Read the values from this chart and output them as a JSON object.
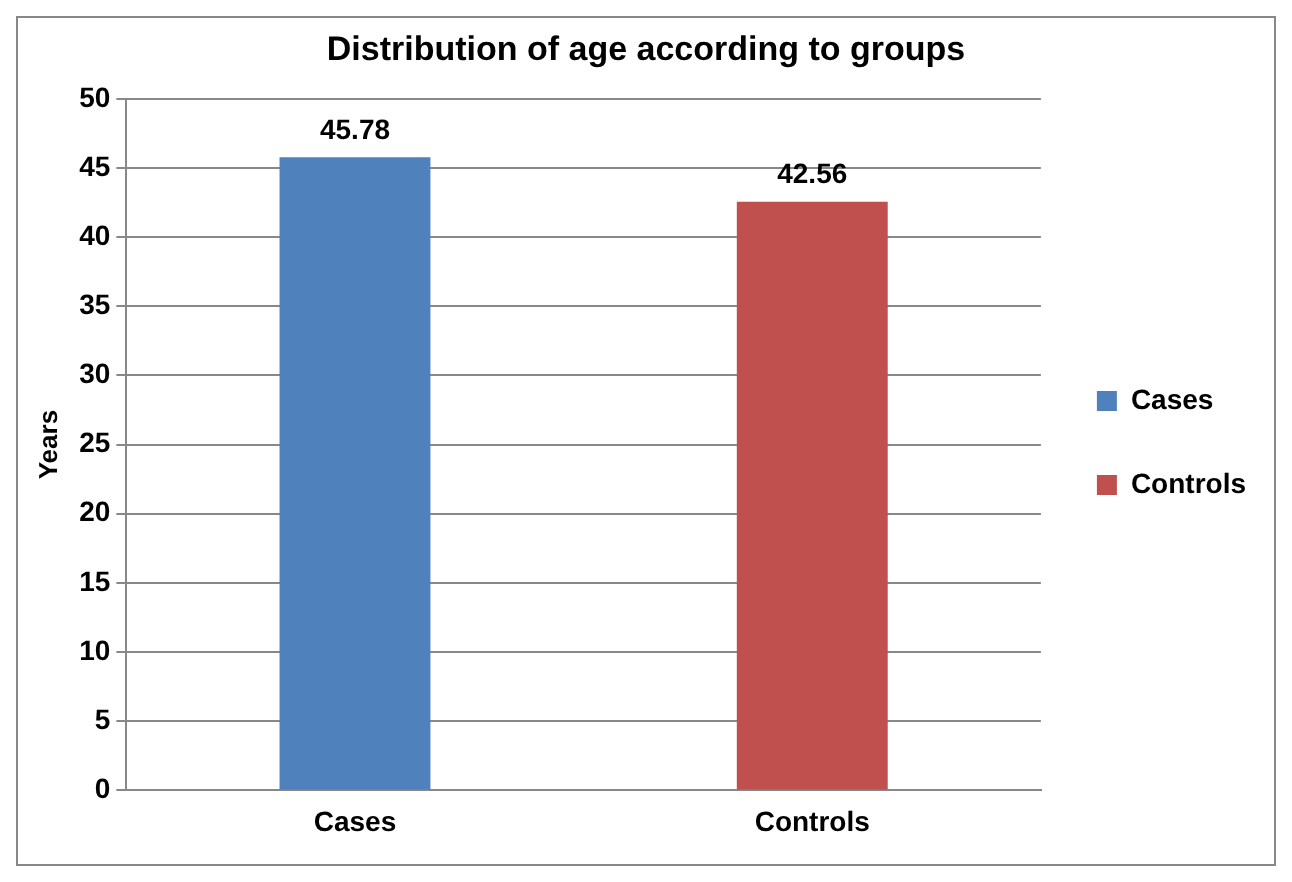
{
  "chart_data": {
    "type": "bar",
    "title": "Distribution of age according to groups",
    "ylabel": "Years",
    "categories": [
      "Cases",
      "Controls"
    ],
    "series": [
      {
        "name": "Cases",
        "color": "#4f81bd",
        "values": [
          45.78,
          null
        ]
      },
      {
        "name": "Controls",
        "color": "#c0504d",
        "values": [
          null,
          42.56
        ]
      }
    ],
    "ylim": [
      0,
      50
    ],
    "yticks": [
      0,
      5,
      10,
      15,
      20,
      25,
      30,
      35,
      40,
      45,
      50
    ],
    "grid": "y",
    "legend": "right",
    "data_labels": true
  }
}
